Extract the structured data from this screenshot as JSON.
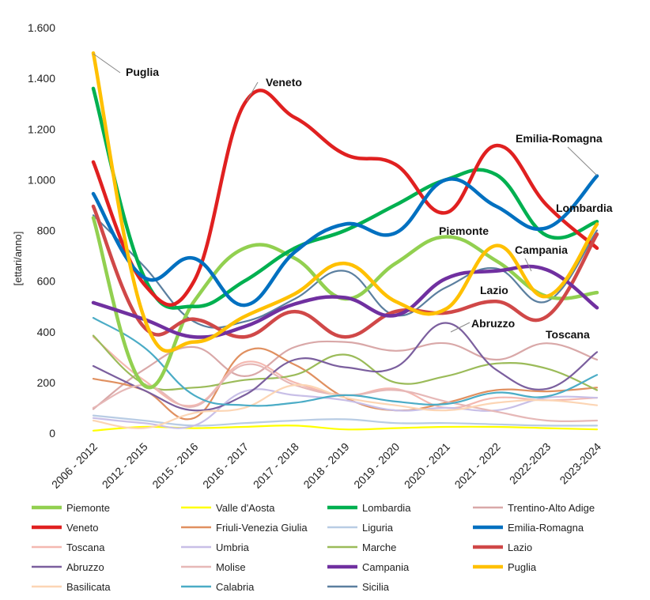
{
  "chart_data": {
    "type": "line",
    "title": "",
    "xlabel": "",
    "ylabel": "[ettari/anno]",
    "ylim": [
      0,
      1600
    ],
    "yticks": [
      0,
      200,
      400,
      600,
      800,
      1000,
      1200,
      1400,
      1600
    ],
    "ytick_labels": [
      "0",
      "200",
      "400",
      "600",
      "800",
      "1.000",
      "1.200",
      "1.400",
      "1.600"
    ],
    "categories": [
      "2006 - 2012",
      "2012 - 2015",
      "2015 - 2016",
      "2016 - 2017",
      "2017 - 2018",
      "2018 - 2019",
      "2019 - 2020",
      "2020 - 2021",
      "2021 - 2022",
      "2022-2023",
      "2023-2024"
    ],
    "series": [
      {
        "name": "Piemonte",
        "color": "#92d050",
        "bold": true,
        "values": [
          850,
          190,
          520,
          730,
          690,
          530,
          670,
          775,
          680,
          540,
          555
        ]
      },
      {
        "name": "Valle d'Aosta",
        "color": "#ffff00",
        "bold": false,
        "values": [
          10,
          25,
          20,
          25,
          30,
          15,
          20,
          25,
          25,
          20,
          15
        ]
      },
      {
        "name": "Lombardia",
        "color": "#00b050",
        "bold": true,
        "values": [
          1360,
          620,
          500,
          600,
          730,
          800,
          900,
          1000,
          1020,
          780,
          835
        ]
      },
      {
        "name": "Trentino-Alto Adige",
        "color": "#d9a8a8",
        "bold": false,
        "values": [
          95,
          250,
          340,
          225,
          340,
          360,
          325,
          355,
          290,
          355,
          290
        ]
      },
      {
        "name": "Veneto",
        "color": "#e02020",
        "bold": true,
        "values": [
          1070,
          590,
          600,
          1300,
          1245,
          1100,
          1060,
          870,
          1135,
          900,
          730
        ]
      },
      {
        "name": "Friuli-Venezia Giulia",
        "color": "#e09060",
        "bold": false,
        "values": [
          215,
          170,
          60,
          320,
          270,
          140,
          90,
          120,
          170,
          165,
          180
        ]
      },
      {
        "name": "Liguria",
        "color": "#b8cce4",
        "bold": false,
        "values": [
          70,
          50,
          30,
          40,
          50,
          55,
          40,
          40,
          35,
          30,
          30
        ]
      },
      {
        "name": "Emilia-Romagna",
        "color": "#0070c0",
        "bold": true,
        "values": [
          945,
          615,
          690,
          505,
          715,
          825,
          790,
          1000,
          895,
          810,
          1015
        ]
      },
      {
        "name": "Toscana",
        "color": "#f4b8b0",
        "bold": false,
        "values": [
          380,
          210,
          110,
          280,
          200,
          150,
          175,
          100,
          140,
          130,
          140
        ]
      },
      {
        "name": "Umbria",
        "color": "#c8bfe7",
        "bold": false,
        "values": [
          60,
          40,
          30,
          165,
          150,
          130,
          90,
          100,
          90,
          140,
          140
        ]
      },
      {
        "name": "Marche",
        "color": "#9bbb59",
        "bold": false,
        "values": [
          385,
          195,
          180,
          210,
          230,
          310,
          200,
          225,
          275,
          255,
          170
        ]
      },
      {
        "name": "Lazio",
        "color": "#d04848",
        "bold": true,
        "values": [
          895,
          420,
          450,
          380,
          480,
          380,
          480,
          475,
          520,
          460,
          785
        ]
      },
      {
        "name": "Abruzzo",
        "color": "#7b5f9e",
        "bold": false,
        "values": [
          265,
          170,
          90,
          150,
          290,
          260,
          260,
          435,
          250,
          175,
          320
        ]
      },
      {
        "name": "Molise",
        "color": "#e6b8b7",
        "bold": false,
        "values": [
          100,
          190,
          105,
          270,
          190,
          150,
          170,
          125,
          85,
          50,
          50
        ]
      },
      {
        "name": "Campania",
        "color": "#7030a0",
        "bold": true,
        "values": [
          515,
          450,
          380,
          420,
          510,
          535,
          465,
          610,
          640,
          645,
          495
        ]
      },
      {
        "name": "Puglia",
        "color": "#ffc000",
        "bold": true,
        "values": [
          1500,
          460,
          360,
          460,
          550,
          670,
          520,
          490,
          740,
          540,
          825
        ]
      },
      {
        "name": "Basilicata",
        "color": "#fcd5b4",
        "bold": false,
        "values": [
          50,
          20,
          80,
          100,
          190,
          140,
          110,
          90,
          120,
          130,
          110
        ]
      },
      {
        "name": "Calabria",
        "color": "#4bacc6",
        "bold": false,
        "values": [
          455,
          340,
          150,
          110,
          120,
          150,
          125,
          115,
          160,
          145,
          230
        ]
      },
      {
        "name": "Sicilia",
        "color": "#5b7f9f",
        "bold": false,
        "values": [
          860,
          660,
          440,
          440,
          530,
          640,
          465,
          575,
          650,
          520,
          800
        ]
      }
    ],
    "annotations": [
      {
        "text": "Puglia",
        "series": "Puglia"
      },
      {
        "text": "Veneto",
        "series": "Veneto"
      },
      {
        "text": "Emilia-Romagna",
        "series": "Emilia-Romagna"
      },
      {
        "text": "Lombardia",
        "series": "Lombardia"
      },
      {
        "text": "Piemonte",
        "series": "Piemonte"
      },
      {
        "text": "Campania",
        "series": "Campania"
      },
      {
        "text": "Lazio",
        "series": "Lazio"
      },
      {
        "text": "Abruzzo",
        "series": "Abruzzo"
      },
      {
        "text": "Toscana",
        "series": "Toscana"
      }
    ],
    "legend_position": "bottom",
    "legend_columns": 4
  }
}
